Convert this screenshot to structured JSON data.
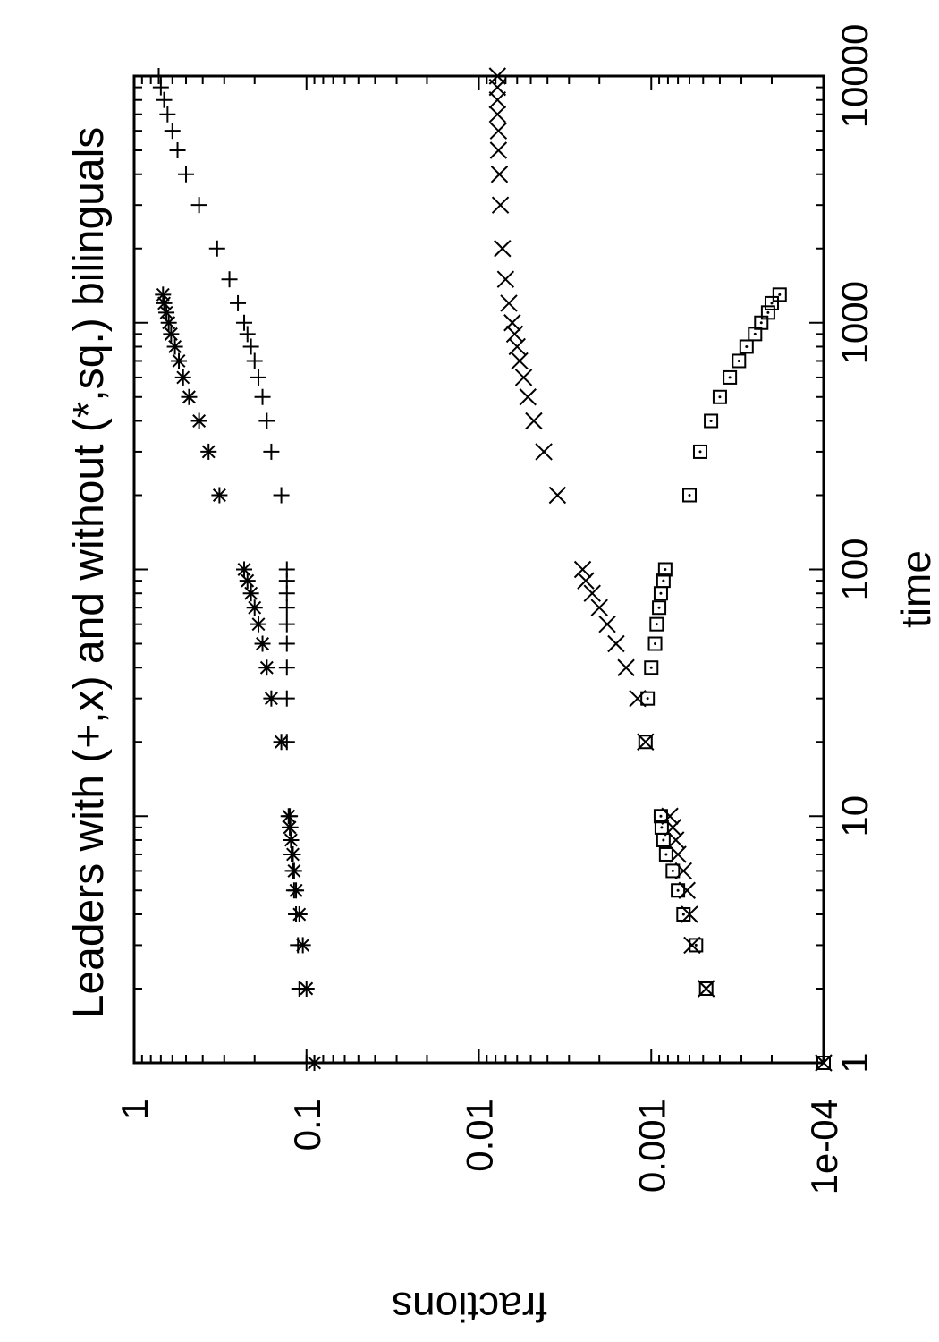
{
  "chart_data": {
    "type": "scatter",
    "title": "Leaders with (+,x) and without (*,sq.) bilinguals",
    "xlabel": "time",
    "ylabel": "fractions",
    "x_scale": "log",
    "y_scale": "log",
    "xlim": [
      1,
      10000
    ],
    "ylim": [
      0.0001,
      1
    ],
    "x_ticks": [
      "1",
      "10",
      "100",
      "1000",
      "10000"
    ],
    "y_ticks": [
      "1e-04",
      "0.001",
      "0.01",
      "0.1",
      "1"
    ],
    "orientation": "rotated 90 degrees counter-clockwise",
    "series": [
      {
        "marker": "plus",
        "x": [
          1,
          2,
          3,
          4,
          5,
          6,
          7,
          8,
          9,
          10,
          20,
          30,
          40,
          50,
          60,
          70,
          80,
          90,
          100,
          200,
          300,
          400,
          500,
          600,
          700,
          800,
          900,
          1000,
          1200,
          1500,
          2000,
          3000,
          4000,
          5000,
          6000,
          7000,
          8000,
          9000,
          10000
        ],
        "y": [
          0.1,
          0.11,
          0.112,
          0.115,
          0.118,
          0.12,
          0.122,
          0.123,
          0.124,
          0.125,
          0.13,
          0.13,
          0.13,
          0.13,
          0.13,
          0.13,
          0.13,
          0.13,
          0.13,
          0.14,
          0.16,
          0.17,
          0.18,
          0.19,
          0.2,
          0.21,
          0.22,
          0.23,
          0.25,
          0.28,
          0.33,
          0.42,
          0.5,
          0.56,
          0.6,
          0.64,
          0.67,
          0.7,
          0.72
        ]
      },
      {
        "marker": "cross",
        "x": [
          1,
          2,
          3,
          4,
          5,
          6,
          7,
          8,
          9,
          10,
          20,
          30,
          40,
          50,
          60,
          70,
          80,
          90,
          100,
          200,
          300,
          400,
          500,
          600,
          700,
          800,
          900,
          1000,
          1200,
          1500,
          2000,
          3000,
          4000,
          5000,
          6000,
          7000,
          8000,
          9000,
          10000
        ],
        "y": [
          0.0001,
          0.00048,
          0.00058,
          0.0006,
          0.00062,
          0.00065,
          0.0007,
          0.00072,
          0.00075,
          0.00078,
          0.00108,
          0.0012,
          0.0014,
          0.0016,
          0.0018,
          0.002,
          0.0022,
          0.0024,
          0.0025,
          0.0035,
          0.0042,
          0.0048,
          0.0052,
          0.0055,
          0.0058,
          0.006,
          0.0062,
          0.0064,
          0.0067,
          0.007,
          0.0073,
          0.0075,
          0.0076,
          0.0077,
          0.0077,
          0.0078,
          0.0078,
          0.0078,
          0.0078
        ]
      },
      {
        "marker": "star",
        "x": [
          1,
          2,
          3,
          4,
          5,
          6,
          7,
          8,
          9,
          10,
          20,
          30,
          40,
          50,
          60,
          70,
          80,
          90,
          100,
          200,
          300,
          400,
          500,
          600,
          700,
          800,
          900,
          1000,
          1100,
          1200,
          1300
        ],
        "y": [
          0.09,
          0.1,
          0.105,
          0.11,
          0.115,
          0.118,
          0.12,
          0.123,
          0.125,
          0.127,
          0.14,
          0.16,
          0.17,
          0.18,
          0.19,
          0.2,
          0.21,
          0.22,
          0.23,
          0.32,
          0.37,
          0.42,
          0.48,
          0.52,
          0.55,
          0.58,
          0.61,
          0.63,
          0.65,
          0.67,
          0.68
        ]
      },
      {
        "marker": "dotted-square",
        "x": [
          1,
          2,
          3,
          4,
          5,
          6,
          7,
          8,
          9,
          10,
          20,
          30,
          40,
          50,
          60,
          70,
          80,
          90,
          100,
          200,
          300,
          400,
          500,
          600,
          700,
          800,
          900,
          1000,
          1100,
          1200,
          1300
        ],
        "y": [
          0.0001,
          0.00048,
          0.00055,
          0.00065,
          0.0007,
          0.00075,
          0.00082,
          0.00085,
          0.00087,
          0.00088,
          0.00108,
          0.00105,
          0.001,
          0.00095,
          0.00093,
          0.0009,
          0.00088,
          0.00085,
          0.00083,
          0.0006,
          0.00052,
          0.00045,
          0.0004,
          0.00035,
          0.00031,
          0.00028,
          0.00025,
          0.00023,
          0.00021,
          0.0002,
          0.00018
        ]
      }
    ]
  }
}
